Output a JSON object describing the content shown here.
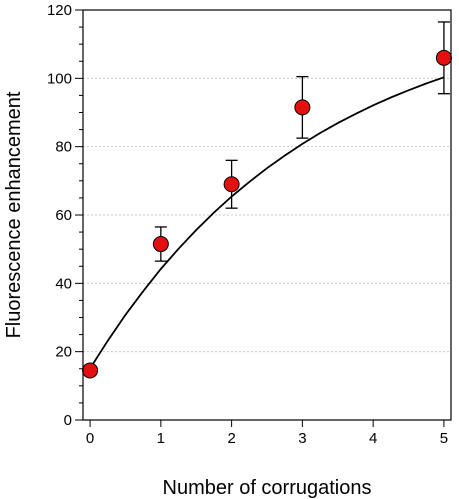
{
  "chart_data": {
    "type": "scatter",
    "title": "",
    "xlabel": "Number of corrugations",
    "ylabel": "Fluorescence enhancement",
    "xlim": [
      -0.1,
      5.1
    ],
    "ylim": [
      0,
      120
    ],
    "x_ticks": [
      0,
      1,
      2,
      3,
      4,
      5
    ],
    "y_ticks": [
      0,
      20,
      40,
      60,
      80,
      100,
      120
    ],
    "y_minor_step": 5,
    "grid": "horizontal dotted at major y ticks",
    "legend": "none",
    "series": [
      {
        "marker": "circle",
        "color": "#e41010",
        "points": [
          {
            "x": 0,
            "y": 14.5,
            "err": 0
          },
          {
            "x": 1,
            "y": 51.5,
            "err": 5
          },
          {
            "x": 2,
            "y": 69,
            "err": 7
          },
          {
            "x": 3,
            "y": 91.5,
            "err": 9
          },
          {
            "x": 5,
            "y": 106,
            "err": 10.5
          }
        ]
      }
    ],
    "fit_curve": {
      "color": "#000000",
      "x": [
        0,
        0.25,
        0.5,
        0.75,
        1,
        1.25,
        1.5,
        1.75,
        2,
        2.25,
        2.5,
        2.75,
        3,
        3.25,
        3.5,
        3.75,
        4,
        4.25,
        4.5,
        4.75,
        5
      ],
      "y": [
        15.1,
        23.2,
        30.8,
        37.7,
        44.2,
        50.1,
        55.6,
        60.7,
        65.4,
        69.7,
        73.7,
        77.4,
        80.8,
        84.0,
        86.9,
        89.6,
        92.1,
        94.4,
        96.5,
        98.5,
        100.3
      ]
    }
  }
}
